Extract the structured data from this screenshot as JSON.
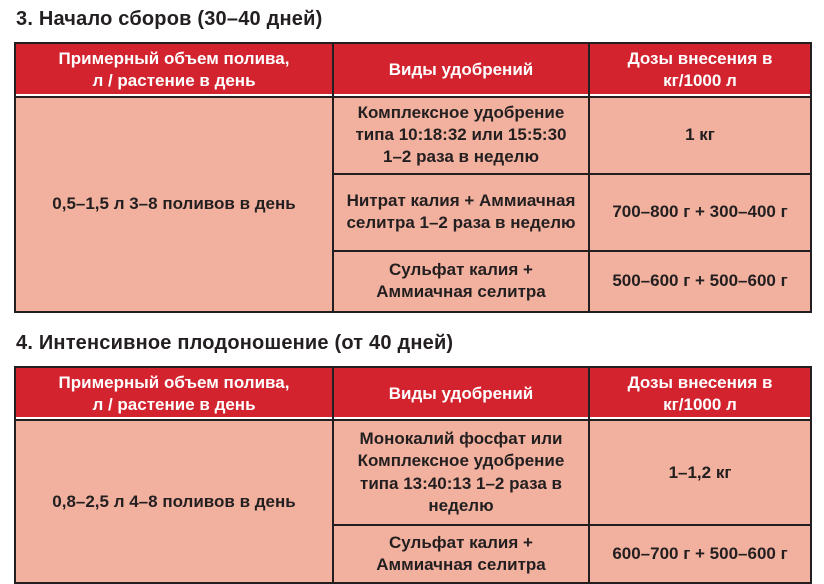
{
  "colors": {
    "header_bg": "#d2232f",
    "body_bg": "#f2b19e",
    "header_text": "#ffffff",
    "body_text": "#231f20",
    "border": "#231f20",
    "page_bg": "#ffffff"
  },
  "sections": [
    {
      "heading": "3. Начало сборов (30–40 дней)",
      "table": {
        "columns": [
          "Примерный объем полива,\nл / растение в день",
          "Виды удобрений",
          "Дозы внесения в кг/1000 л"
        ],
        "watering": "0,5–1,5 л 3–8 поливов в день",
        "rows": [
          {
            "fertilizer": "Комплексное удобрение типа 10:18:32 или 15:5:30 1–2 раза в неделю",
            "dose": "1 кг"
          },
          {
            "fertilizer": "Нитрат калия + Аммиачная селитра 1–2 раза в неделю",
            "dose": "700–800 г + 300–400 г"
          },
          {
            "fertilizer": "Сульфат калия + Аммиачная селитра",
            "dose": "500–600 г + 500–600 г"
          }
        ]
      }
    },
    {
      "heading": "4. Интенсивное плодоношение (от 40 дней)",
      "table": {
        "columns": [
          "Примерный объем полива,\nл / растение в день",
          "Виды удобрений",
          "Дозы внесения в кг/1000 л"
        ],
        "watering": "0,8–2,5 л 4–8 поливов в день",
        "rows": [
          {
            "fertilizer": "Монокалий фосфат или Комплексное удобрение типа 13:40:13 1–2 раза в неделю",
            "dose": "1–1,2 кг"
          },
          {
            "fertilizer": "Сульфат калия + Аммиачная селитра",
            "dose": "600–700 г + 500–600 г"
          }
        ]
      }
    }
  ]
}
